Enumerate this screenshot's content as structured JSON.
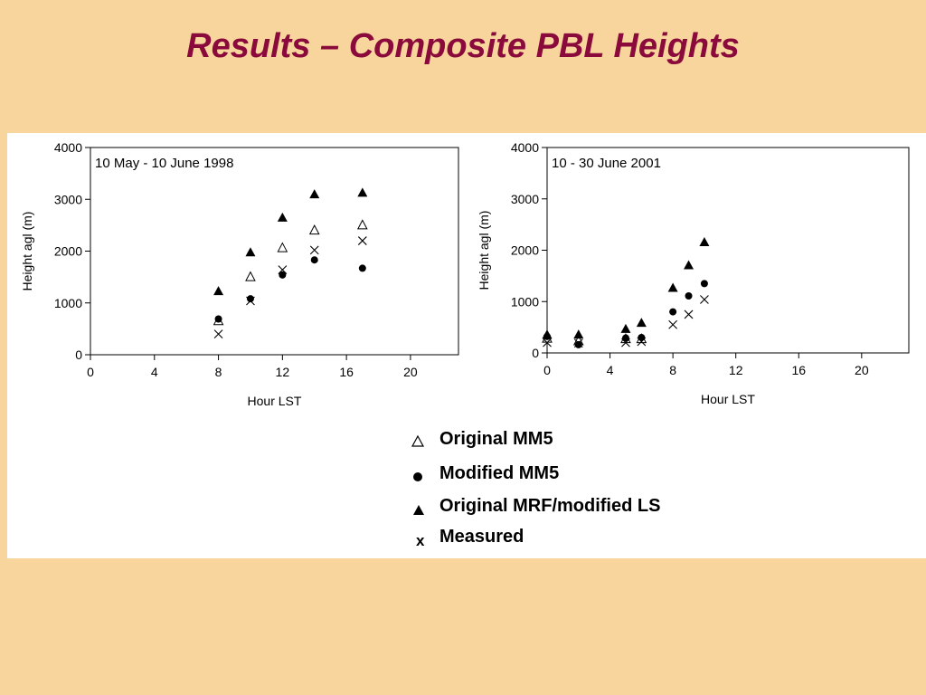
{
  "slide": {
    "title": "Results – Composite PBL Heights",
    "colors": {
      "background": "#F7D59D",
      "title": "#8B0A3C",
      "panel": "#FFFFFF"
    }
  },
  "legend": {
    "items": [
      {
        "symbol": "open-triangle",
        "label": "Original MM5"
      },
      {
        "symbol": "filled-circle",
        "label": "Modified MM5"
      },
      {
        "symbol": "filled-triangle",
        "label": "Original MRF/modified LS"
      },
      {
        "symbol": "x-mark",
        "label": "Measured"
      }
    ]
  },
  "chart_data": [
    {
      "type": "scatter",
      "title": "10 May - 10 June 1998",
      "xlabel": "Hour LST",
      "ylabel": "Height agl (m)",
      "xlim": [
        0,
        23
      ],
      "ylim": [
        0,
        4000
      ],
      "xticks": [
        0,
        4,
        8,
        12,
        16,
        20
      ],
      "yticks": [
        0,
        1000,
        2000,
        3000,
        4000
      ],
      "grid": false,
      "series": [
        {
          "name": "Original MM5",
          "symbol": "open-triangle",
          "x": [
            8,
            10,
            12,
            14,
            17
          ],
          "y": [
            650,
            1500,
            2060,
            2400,
            2500
          ]
        },
        {
          "name": "Modified MM5",
          "symbol": "filled-circle",
          "x": [
            8,
            10,
            12,
            14,
            17
          ],
          "y": [
            690,
            1080,
            1540,
            1830,
            1670
          ]
        },
        {
          "name": "Original MRF/modified LS",
          "symbol": "filled-triangle",
          "x": [
            8,
            10,
            12,
            14,
            17
          ],
          "y": [
            1220,
            1970,
            2640,
            3090,
            3120
          ]
        },
        {
          "name": "Measured",
          "symbol": "x-mark",
          "x": [
            8,
            10,
            12,
            14,
            17
          ],
          "y": [
            400,
            1040,
            1640,
            2020,
            2200
          ]
        }
      ]
    },
    {
      "type": "scatter",
      "title": "10 - 30 June 2001",
      "xlabel": "Hour LST",
      "ylabel": "Height agl (m)",
      "xlim": [
        0,
        23
      ],
      "ylim": [
        0,
        4000
      ],
      "xticks": [
        0,
        4,
        8,
        12,
        16,
        20
      ],
      "yticks": [
        0,
        1000,
        2000,
        3000,
        4000
      ],
      "grid": false,
      "series": [
        {
          "name": "Original MM5",
          "symbol": "open-triangle",
          "x": [
            0,
            2,
            5,
            6
          ],
          "y": [
            280,
            230,
            270,
            270
          ]
        },
        {
          "name": "Modified MM5",
          "symbol": "filled-circle",
          "x": [
            0,
            2,
            5,
            6,
            8,
            9,
            10
          ],
          "y": [
            320,
            160,
            290,
            300,
            800,
            1110,
            1350
          ]
        },
        {
          "name": "Original MRF/modified LS",
          "symbol": "filled-triangle",
          "x": [
            0,
            2,
            5,
            6,
            8,
            9,
            10
          ],
          "y": [
            350,
            350,
            460,
            580,
            1260,
            1700,
            2150
          ]
        },
        {
          "name": "Measured",
          "symbol": "x-mark",
          "x": [
            0,
            2,
            5,
            6,
            8,
            9,
            10
          ],
          "y": [
            200,
            190,
            200,
            220,
            550,
            750,
            1040
          ]
        }
      ]
    }
  ]
}
